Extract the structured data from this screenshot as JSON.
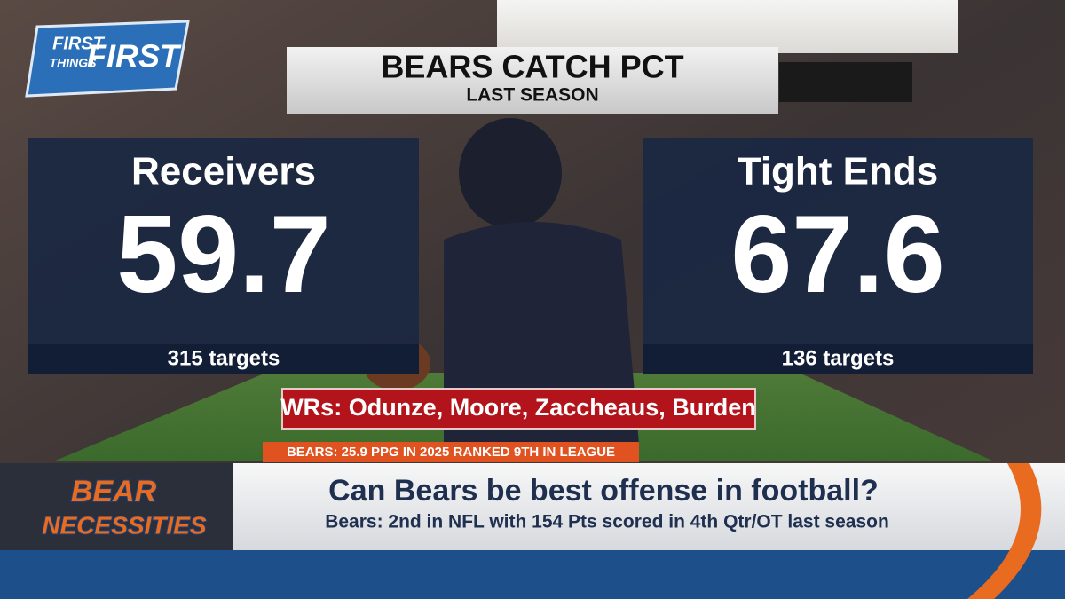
{
  "logo": {
    "lines": [
      "FIRST",
      "THINGS",
      "FIRST"
    ]
  },
  "header": {
    "title": "BEARS CATCH PCT",
    "subtitle": "LAST SEASON"
  },
  "panels": [
    {
      "label": "Receivers",
      "value": 59.7,
      "note": "315 targets"
    },
    {
      "label": "Tight Ends",
      "value": 67.6,
      "note": "136 targets"
    }
  ],
  "banner": "WRs: Odunze, Moore, Zaccheaus, Burden",
  "ticker": "BEARS: 25.9 PPG IN 2025 RANKED 9TH IN LEAGUE",
  "segment": {
    "lines": [
      "BEAR",
      "NECESSITIES"
    ]
  },
  "lower_third": {
    "headline": "Can Bears be best offense in football?",
    "subline": "Bears: 2nd in NFL with 154 Pts scored in 4th Qtr/OT last season"
  }
}
